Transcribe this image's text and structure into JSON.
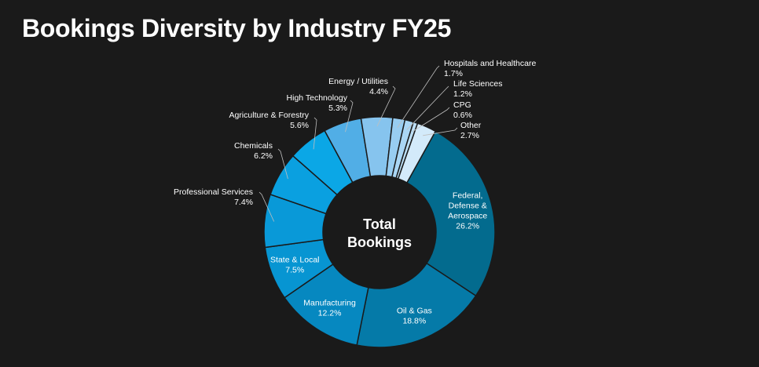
{
  "chart_data": {
    "type": "pie",
    "title": "Bookings Diversity by Industry FY25",
    "center_label": [
      "Total",
      "Bookings"
    ],
    "value_suffix": "%",
    "slices": [
      {
        "name": "Federal, Defense & Aerospace",
        "lines": [
          "Federal,",
          "Defense &",
          "Aerospace"
        ],
        "value": 26.2,
        "value_text": "26.2%",
        "color": "#036b8e",
        "placement": "inside",
        "text_color": "#ffffff"
      },
      {
        "name": "Oil & Gas",
        "lines": [
          "Oil & Gas"
        ],
        "value": 18.8,
        "value_text": "18.8%",
        "color": "#057aa8",
        "placement": "inside",
        "text_color": "#ffffff"
      },
      {
        "name": "Manufacturing",
        "lines": [
          "Manufacturing"
        ],
        "value": 12.2,
        "value_text": "12.2%",
        "color": "#0688c0",
        "placement": "inside",
        "text_color": "#ffffff"
      },
      {
        "name": "State & Local",
        "lines": [
          "State & Local"
        ],
        "value": 7.5,
        "value_text": "7.5%",
        "color": "#0795d2",
        "placement": "inside",
        "text_color": "#ffffff"
      },
      {
        "name": "Professional Services",
        "lines": [
          "Professional Services"
        ],
        "value": 7.4,
        "value_text": "7.4%",
        "color": "#0999d8",
        "placement": "outside",
        "text_color": "#ffffff"
      },
      {
        "name": "Chemicals",
        "lines": [
          "Chemicals"
        ],
        "value": 6.2,
        "value_text": "6.2%",
        "color": "#0aa0e0",
        "placement": "outside",
        "text_color": "#ffffff"
      },
      {
        "name": "Agriculture & Forestry",
        "lines": [
          "Agriculture & Forestry"
        ],
        "value": 5.6,
        "value_text": "5.6%",
        "color": "#0ba7e6",
        "placement": "outside",
        "text_color": "#ffffff"
      },
      {
        "name": "High Technology",
        "lines": [
          "High Technology"
        ],
        "value": 5.3,
        "value_text": "5.3%",
        "color": "#51aee6",
        "placement": "outside",
        "text_color": "#ffffff"
      },
      {
        "name": "Energy / Utilities",
        "lines": [
          "Energy / Utilities"
        ],
        "value": 4.4,
        "value_text": "4.4%",
        "color": "#86c4ee",
        "placement": "outside",
        "text_color": "#ffffff"
      },
      {
        "name": "Hospitals and Healthcare",
        "lines": [
          "Hospitals and Healthcare"
        ],
        "value": 1.7,
        "value_text": "1.7%",
        "color": "#98cdf1",
        "placement": "outside",
        "text_color": "#ffffff"
      },
      {
        "name": "Life Sciences",
        "lines": [
          "Life Sciences"
        ],
        "value": 1.2,
        "value_text": "1.2%",
        "color": "#aad6f4",
        "placement": "outside",
        "text_color": "#ffffff"
      },
      {
        "name": "CPG",
        "lines": [
          "CPG"
        ],
        "value": 0.6,
        "value_text": "0.6%",
        "color": "#bcdff6",
        "placement": "outside",
        "text_color": "#ffffff"
      },
      {
        "name": "Other",
        "lines": [
          "Other"
        ],
        "value": 2.7,
        "value_text": "2.7%",
        "color": "#d3eafa",
        "placement": "outside",
        "text_color": "#ffffff"
      }
    ],
    "legend": "none",
    "colors": {
      "background": "#1a1a1a",
      "center": "#1a1a1a",
      "slice_border": "#1a1a1a",
      "leader_line": "#bfbfbf",
      "text": "#ffffff"
    }
  }
}
